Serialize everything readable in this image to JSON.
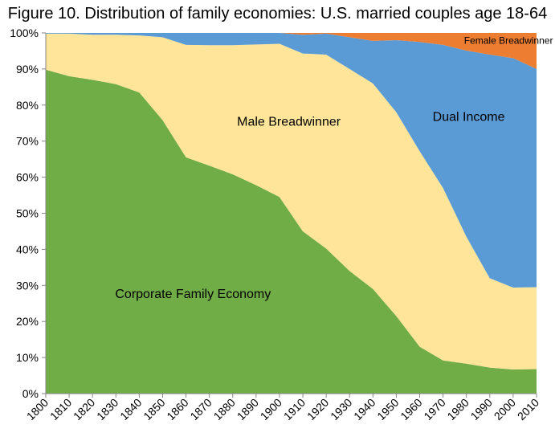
{
  "chart_data": {
    "type": "area",
    "stacked": true,
    "title": "Figure 10. Distribution of family economies: U.S. married couples age 18-64",
    "x": [
      1800,
      1810,
      1820,
      1830,
      1840,
      1850,
      1860,
      1870,
      1880,
      1890,
      1900,
      1910,
      1920,
      1930,
      1940,
      1950,
      1960,
      1970,
      1980,
      1990,
      2000,
      2010
    ],
    "x_tick_labels": [
      "1800",
      "1810",
      "1820",
      "1830",
      "1840",
      "1850",
      "1860",
      "1870",
      "1880",
      "1890",
      "1900",
      "1910",
      "1920",
      "1930",
      "1940",
      "1950",
      "1960",
      "1970",
      "1980",
      "1990",
      "2000",
      "2010"
    ],
    "y_tick_labels": [
      "0%",
      "10%",
      "20%",
      "30%",
      "40%",
      "50%",
      "60%",
      "70%",
      "80%",
      "90%",
      "100%"
    ],
    "ylim": [
      0,
      100
    ],
    "grid": false,
    "series": [
      {
        "name": "Corporate Family Economy",
        "color": "#70ad47",
        "values": [
          89.8,
          88.0,
          87.0,
          85.8,
          83.5,
          75.8,
          65.5,
          63.2,
          60.8,
          57.8,
          54.5,
          45.0,
          40.2,
          34.0,
          29.0,
          21.5,
          13.0,
          9.2,
          8.3,
          7.2,
          6.7,
          6.8
        ]
      },
      {
        "name": "Male Breadwinner",
        "color": "#fee599",
        "values": [
          10.0,
          11.8,
          12.5,
          13.7,
          15.8,
          23.0,
          31.2,
          33.4,
          35.8,
          39.0,
          42.5,
          49.3,
          53.8,
          56.0,
          57.0,
          56.5,
          54.2,
          47.8,
          35.2,
          24.8,
          22.7,
          22.7
        ]
      },
      {
        "name": "Dual Income",
        "color": "#5b9bd5",
        "values": [
          0.2,
          0.2,
          0.5,
          0.5,
          0.7,
          1.2,
          3.3,
          3.4,
          3.4,
          3.2,
          3.0,
          5.2,
          5.8,
          8.8,
          11.8,
          20.0,
          30.3,
          39.7,
          51.6,
          62.0,
          63.6,
          60.5
        ]
      },
      {
        "name": "Female Breadwinner",
        "color": "#ed7d31",
        "values": [
          0.0,
          0.0,
          0.0,
          0.0,
          0.0,
          0.0,
          0.0,
          0.0,
          0.0,
          0.0,
          0.0,
          0.5,
          0.2,
          1.2,
          2.2,
          2.0,
          2.5,
          3.3,
          4.9,
          6.0,
          7.0,
          10.0
        ]
      }
    ],
    "annotations": [
      {
        "text": "Corporate Family Economy",
        "series": "Corporate Family Economy",
        "color": "#ffffff"
      },
      {
        "text": "Male Breadwinner",
        "series": "Male Breadwinner",
        "color": "#000000"
      },
      {
        "text": "Dual Income",
        "series": "Dual Income",
        "color": "#ffffff"
      },
      {
        "text": "Female Breadwinner",
        "series": "Female Breadwinner",
        "color": "#000000"
      }
    ]
  }
}
